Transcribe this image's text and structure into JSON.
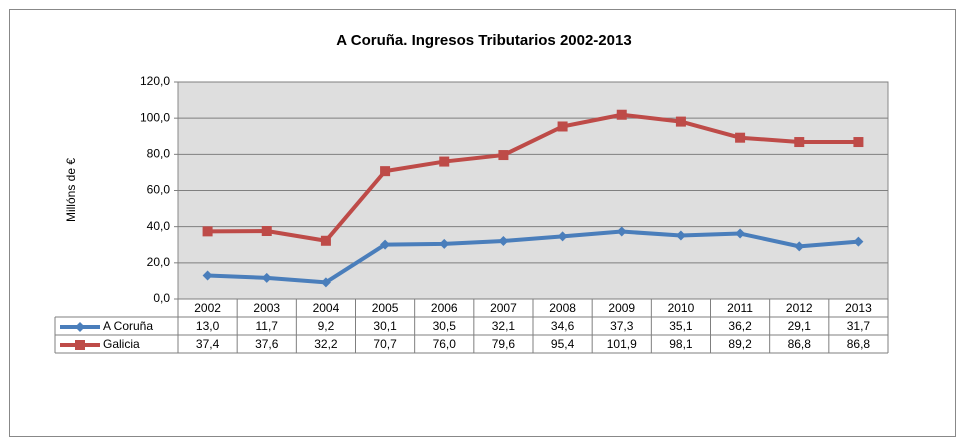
{
  "chart_data": {
    "type": "line",
    "title": "A Coruña. Ingresos Tributarios 2002-2013",
    "y_label": "Millóns de €",
    "categories": [
      "2002",
      "2003",
      "2004",
      "2005",
      "2006",
      "2007",
      "2008",
      "2009",
      "2010",
      "2011",
      "2012",
      "2013"
    ],
    "series": [
      {
        "name": "A Coruña",
        "color": "#4a7ebb",
        "marker": "diamond",
        "values": [
          13.0,
          11.7,
          9.2,
          30.1,
          30.5,
          32.1,
          34.6,
          37.3,
          35.1,
          36.2,
          29.1,
          31.7
        ],
        "value_labels": [
          "13,0",
          "11,7",
          "9,2",
          "30,1",
          "30,5",
          "32,1",
          "34,6",
          "37,3",
          "35,1",
          "36,2",
          "29,1",
          "31,7"
        ]
      },
      {
        "name": "Galicia",
        "color": "#be4b48",
        "marker": "square",
        "values": [
          37.4,
          37.6,
          32.2,
          70.7,
          76.0,
          79.6,
          95.4,
          101.9,
          98.1,
          89.2,
          86.8,
          86.8
        ],
        "value_labels": [
          "37,4",
          "37,6",
          "32,2",
          "70,7",
          "76,0",
          "79,6",
          "95,4",
          "101,9",
          "98,1",
          "89,2",
          "86,8",
          "86,8"
        ]
      }
    ],
    "ylim": [
      0,
      120
    ],
    "yticks": [
      {
        "value": 0,
        "label": "0,0"
      },
      {
        "value": 20,
        "label": "20,0"
      },
      {
        "value": 40,
        "label": "40,0"
      },
      {
        "value": 60,
        "label": "60,0"
      },
      {
        "value": 80,
        "label": "80,0"
      },
      {
        "value": 100,
        "label": "100,0"
      },
      {
        "value": 120,
        "label": "120,0"
      }
    ],
    "grid": true
  }
}
